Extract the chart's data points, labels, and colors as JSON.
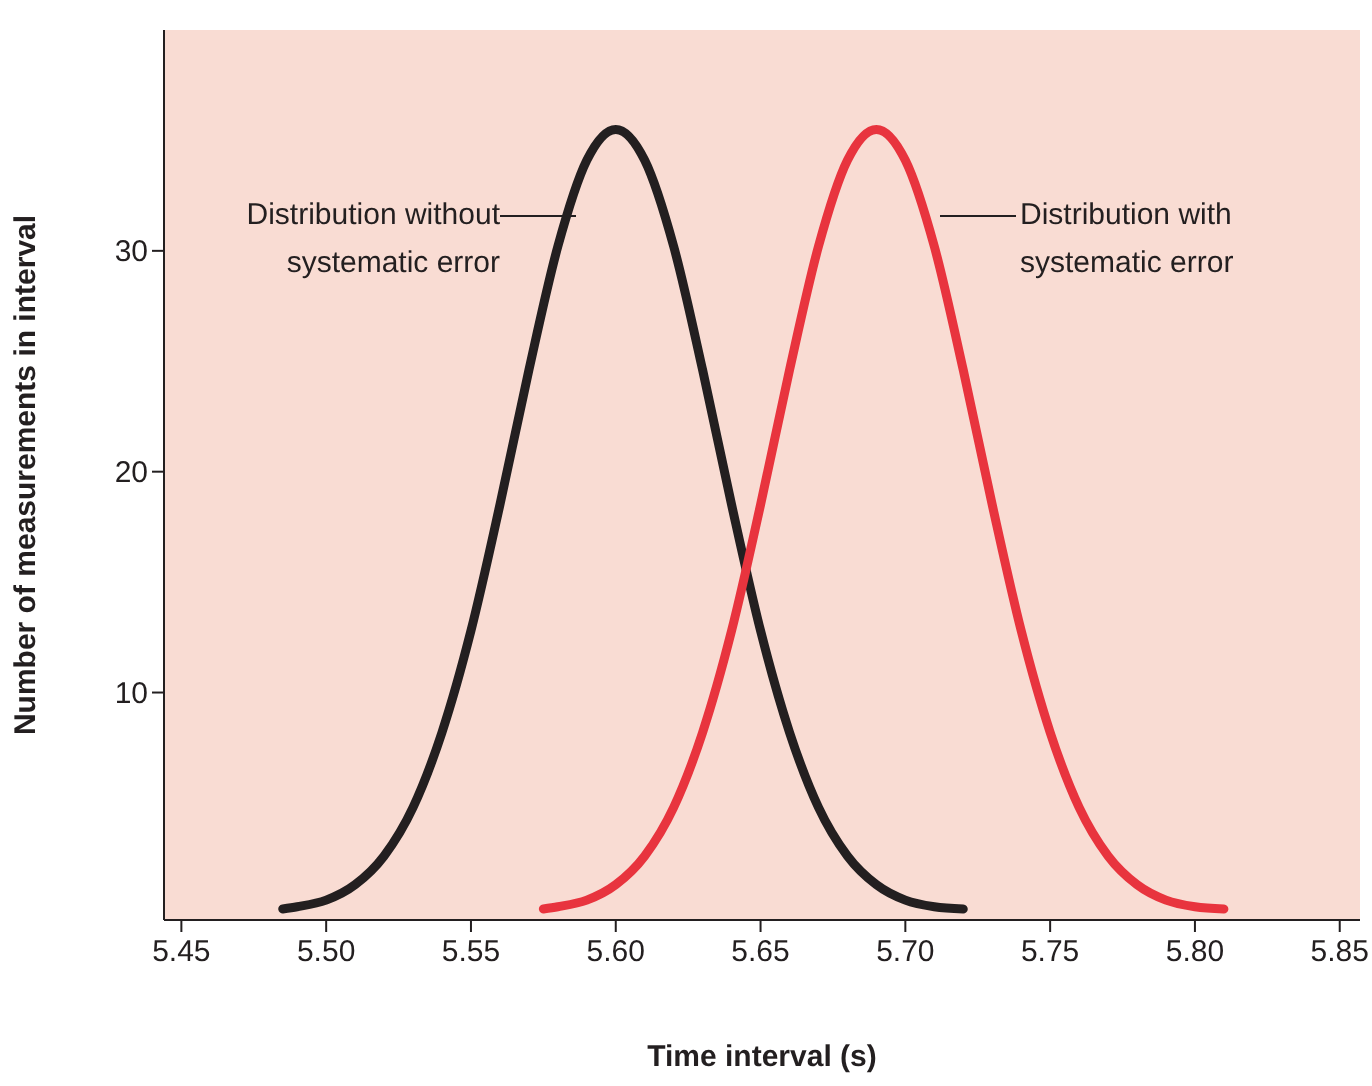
{
  "chart_data": {
    "type": "line",
    "xlabel": "Time interval (s)",
    "ylabel": "Number of measurements in interval",
    "xlim": [
      5.444,
      5.857
    ],
    "ylim": [
      -0.3,
      40
    ],
    "xticks": [
      5.45,
      {
        "value": 5.5,
        "label": "5.50"
      },
      5.55,
      {
        "value": 5.6,
        "label": "5.60"
      },
      5.65,
      {
        "value": 5.7,
        "label": "5.70"
      },
      5.75,
      {
        "value": 5.8,
        "label": "5.80"
      },
      5.85
    ],
    "yticks": [
      10,
      20,
      30
    ],
    "marker": "none",
    "line_style": "solid",
    "series": [
      {
        "color": "#231f20",
        "x": [
          5.485,
          5.49,
          5.5,
          5.51,
          5.52,
          5.53,
          5.54,
          5.55,
          5.56,
          5.57,
          5.58,
          5.59,
          5.6,
          5.61,
          5.62,
          5.63,
          5.64,
          5.65,
          5.66,
          5.67,
          5.68,
          5.69,
          5.7,
          5.71,
          5.72
        ],
        "values": [
          0.2,
          0.3,
          0.6,
          1.3,
          2.6,
          4.8,
          8.2,
          12.8,
          18.5,
          24.6,
          30.2,
          34.1,
          35.5,
          34.1,
          30.2,
          24.6,
          18.5,
          12.8,
          8.2,
          4.8,
          2.6,
          1.3,
          0.6,
          0.3,
          0.2
        ]
      },
      {
        "color": "#e8343e",
        "x": [
          5.575,
          5.58,
          5.59,
          5.6,
          5.61,
          5.62,
          5.63,
          5.64,
          5.65,
          5.66,
          5.67,
          5.68,
          5.69,
          5.7,
          5.71,
          5.72,
          5.73,
          5.74,
          5.75,
          5.76,
          5.77,
          5.78,
          5.79,
          5.8,
          5.81
        ],
        "values": [
          0.2,
          0.3,
          0.6,
          1.3,
          2.6,
          4.8,
          8.2,
          12.8,
          18.5,
          24.6,
          30.2,
          34.1,
          35.5,
          34.1,
          30.2,
          24.6,
          18.5,
          12.8,
          8.2,
          4.8,
          2.6,
          1.3,
          0.6,
          0.3,
          0.2
        ]
      }
    ],
    "annotations": [
      "Distribution without\nsystematic error",
      "Distribution with\nsystematic error"
    ]
  }
}
